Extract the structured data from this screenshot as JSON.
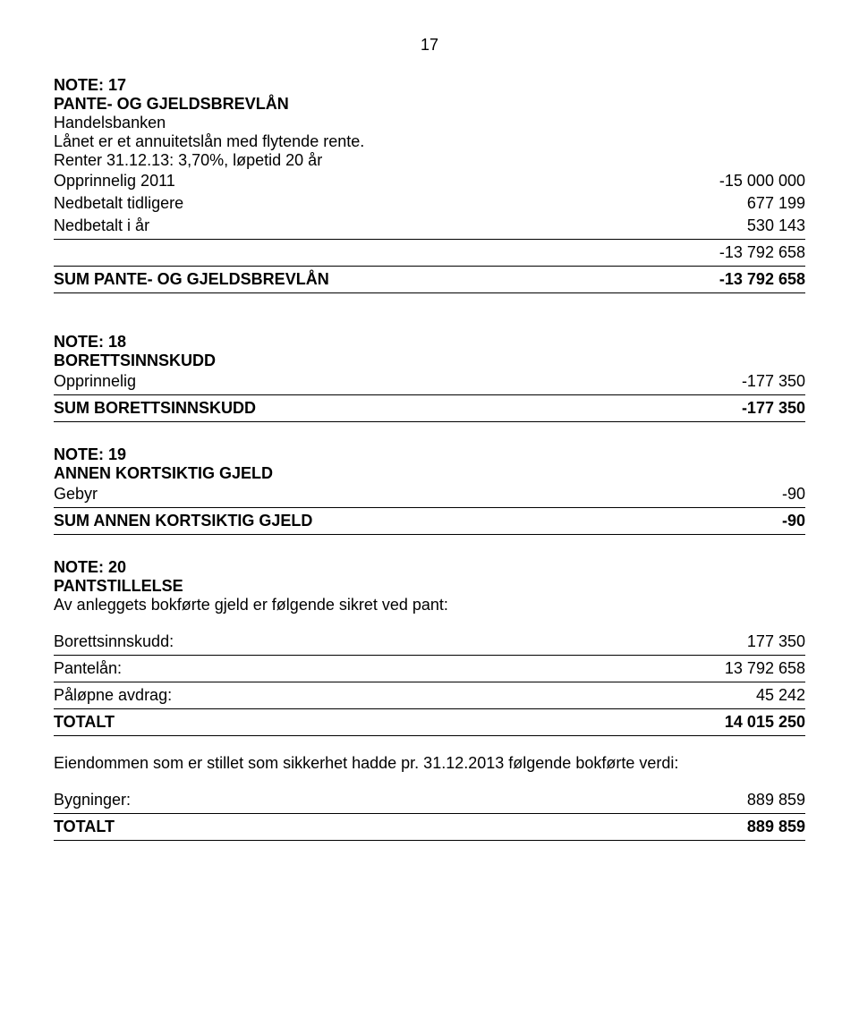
{
  "page_number": "17",
  "note17": {
    "title_line1": "NOTE: 17",
    "title_line2": "PANTE- OG GJELDSBREVLÅN",
    "subheader": "Handelsbanken",
    "desc_line1": "Lånet er et annuitetslån med flytende rente.",
    "desc_line2": "Renter 31.12.13: 3,70%, løpetid 20 år",
    "rows": [
      {
        "label": "Opprinnelig 2011",
        "value": "-15 000 000"
      },
      {
        "label": "Nedbetalt tidligere",
        "value": "677 199"
      },
      {
        "label": "Nedbetalt i år",
        "value": "530 143"
      }
    ],
    "subtotal": "-13 792 658",
    "sum_label": "SUM PANTE- OG GJELDSBREVLÅN",
    "sum_value": "-13 792 658"
  },
  "note18": {
    "title_line1": "NOTE: 18",
    "title_line2": "BORETTSINNSKUDD",
    "rows": [
      {
        "label": "Opprinnelig",
        "value": "-177 350"
      }
    ],
    "sum_label": "SUM BORETTSINNSKUDD",
    "sum_value": "-177 350"
  },
  "note19": {
    "title_line1": "NOTE: 19",
    "title_line2": "ANNEN KORTSIKTIG GJELD",
    "rows": [
      {
        "label": "Gebyr",
        "value": "-90"
      }
    ],
    "sum_label": "SUM ANNEN KORTSIKTIG GJELD",
    "sum_value": "-90"
  },
  "note20": {
    "title_line1": "NOTE: 20",
    "title_line2": "PANTSTILLELSE",
    "desc": "Av anleggets bokførte gjeld er følgende sikret ved pant:",
    "rows": [
      {
        "label": "Borettsinnskudd:",
        "value": "177 350"
      },
      {
        "label": "Pantelån:",
        "value": "13 792 658"
      },
      {
        "label": "Påløpne avdrag:",
        "value": "45 242"
      }
    ],
    "sum_label": "TOTALT",
    "sum_value": "14 015 250",
    "footer_desc": "Eiendommen som er stillet som sikkerhet hadde pr. 31.12.2013 følgende bokførte verdi:",
    "footer_rows": [
      {
        "label": "Bygninger:",
        "value": "889 859"
      }
    ],
    "footer_sum_label": "TOTALT",
    "footer_sum_value": "889 859"
  }
}
